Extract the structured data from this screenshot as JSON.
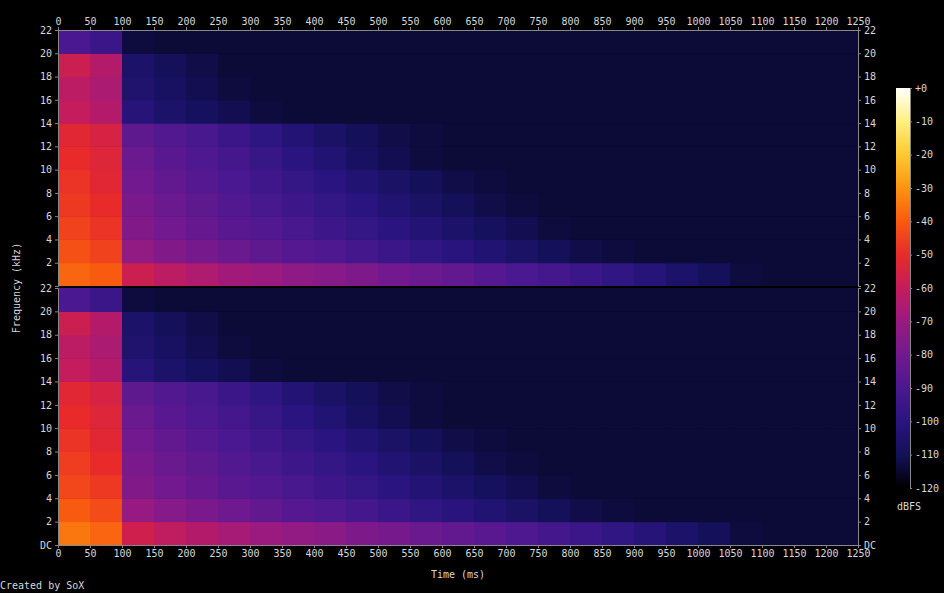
{
  "chart_data": [
    {
      "type": "heatmap",
      "x_bins": [
        0,
        50,
        100,
        150,
        200,
        250,
        300,
        350,
        400,
        450,
        500,
        550,
        600,
        650,
        700,
        750,
        800,
        850,
        900,
        950,
        1000,
        1050,
        1100,
        1150,
        1200,
        1250
      ],
      "y_bins": [
        0,
        2,
        4,
        6,
        8,
        10,
        12,
        14,
        16,
        18,
        20,
        22
      ],
      "xlim": [
        0,
        1250
      ],
      "ylim": [
        0,
        22
      ],
      "xticks": [
        0,
        50,
        100,
        150,
        200,
        250,
        300,
        350,
        400,
        450,
        500,
        550,
        600,
        650,
        700,
        750,
        800,
        850,
        900,
        950,
        1000,
        1050,
        1100,
        1150,
        1200,
        1250
      ],
      "yticks": [
        2,
        4,
        6,
        8,
        10,
        12,
        14,
        16,
        18,
        20,
        22
      ],
      "cells": [
        [
          -38,
          -40,
          -58,
          -62,
          -65,
          -68,
          -70,
          -73,
          -75,
          -77,
          -80,
          -82,
          -84,
          -87,
          -90,
          -92,
          -95,
          -98,
          -102,
          -106,
          -110,
          -113,
          -114,
          -114,
          -114
        ],
        [
          -42,
          -45,
          -72,
          -76,
          -79,
          -82,
          -85,
          -87,
          -89,
          -92,
          -95,
          -98,
          -101,
          -104,
          -107,
          -110,
          -112,
          -113,
          -114,
          -114,
          -114,
          -114,
          -114,
          -114,
          -114
        ],
        [
          -45,
          -48,
          -76,
          -80,
          -83,
          -86,
          -88,
          -91,
          -94,
          -97,
          -100,
          -103,
          -106,
          -109,
          -111,
          -113,
          -114,
          -114,
          -114,
          -114,
          -114,
          -114,
          -114,
          -114,
          -114
        ],
        [
          -47,
          -50,
          -78,
          -82,
          -85,
          -88,
          -91,
          -94,
          -97,
          -100,
          -104,
          -107,
          -110,
          -112,
          -113,
          -114,
          -114,
          -114,
          -114,
          -114,
          -114,
          -114,
          -114,
          -114,
          -114
        ],
        [
          -48,
          -52,
          -80,
          -84,
          -87,
          -90,
          -93,
          -97,
          -100,
          -104,
          -107,
          -110,
          -112,
          -113,
          -114,
          -114,
          -114,
          -114,
          -114,
          -114,
          -114,
          -114,
          -114,
          -114,
          -114
        ],
        [
          -50,
          -53,
          -82,
          -86,
          -89,
          -92,
          -96,
          -100,
          -104,
          -108,
          -111,
          -113,
          -114,
          -114,
          -114,
          -114,
          -114,
          -114,
          -114,
          -114,
          -114,
          -114,
          -114,
          -114,
          -114
        ],
        [
          -52,
          -55,
          -85,
          -88,
          -91,
          -95,
          -99,
          -103,
          -107,
          -110,
          -112,
          -113,
          -114,
          -114,
          -114,
          -114,
          -114,
          -114,
          -114,
          -114,
          -114,
          -114,
          -114,
          -114,
          -114
        ],
        [
          -60,
          -64,
          -102,
          -106,
          -109,
          -111,
          -113,
          -114,
          -114,
          -114,
          -114,
          -114,
          -114,
          -114,
          -114,
          -114,
          -114,
          -114,
          -114,
          -114,
          -114,
          -114,
          -114,
          -114,
          -114
        ],
        [
          -62,
          -66,
          -105,
          -108,
          -111,
          -113,
          -114,
          -114,
          -114,
          -114,
          -114,
          -114,
          -114,
          -114,
          -114,
          -114,
          -114,
          -114,
          -114,
          -114,
          -114,
          -114,
          -114,
          -114,
          -114
        ],
        [
          -58,
          -64,
          -106,
          -110,
          -112,
          -114,
          -114,
          -114,
          -114,
          -114,
          -114,
          -114,
          -114,
          -114,
          -114,
          -114,
          -114,
          -114,
          -114,
          -114,
          -114,
          -114,
          -114,
          -114,
          -114
        ],
        [
          -90,
          -95,
          -113,
          -114,
          -114,
          -114,
          -114,
          -114,
          -114,
          -114,
          -114,
          -114,
          -114,
          -114,
          -114,
          -114,
          -114,
          -114,
          -114,
          -114,
          -114,
          -114,
          -114,
          -114,
          -114
        ]
      ]
    },
    {
      "type": "heatmap",
      "x_label": "Time (ms)",
      "y_label": "Frequency (kHz)",
      "x_bins": [
        0,
        50,
        100,
        150,
        200,
        250,
        300,
        350,
        400,
        450,
        500,
        550,
        600,
        650,
        700,
        750,
        800,
        850,
        900,
        950,
        1000,
        1050,
        1100,
        1150,
        1200,
        1250
      ],
      "y_bins": [
        0,
        2,
        4,
        6,
        8,
        10,
        12,
        14,
        16,
        18,
        20,
        22
      ],
      "xlim": [
        0,
        1250
      ],
      "ylim": [
        0,
        22
      ],
      "xticks": [
        0,
        50,
        100,
        150,
        200,
        250,
        300,
        350,
        400,
        450,
        500,
        550,
        600,
        650,
        700,
        750,
        800,
        850,
        900,
        950,
        1000,
        1050,
        1100,
        1150,
        1200,
        1250
      ],
      "yticks": [
        {
          "value": 0,
          "label": "DC"
        },
        2,
        4,
        6,
        8,
        10,
        12,
        14,
        16,
        18,
        20,
        22
      ],
      "cells": [
        [
          -35,
          -38,
          -57,
          -61,
          -64,
          -67,
          -70,
          -72,
          -74,
          -77,
          -79,
          -82,
          -84,
          -86,
          -89,
          -92,
          -95,
          -98,
          -102,
          -106,
          -110,
          -113,
          -114,
          -114,
          -114
        ],
        [
          -40,
          -43,
          -71,
          -75,
          -78,
          -81,
          -84,
          -87,
          -89,
          -92,
          -95,
          -98,
          -101,
          -104,
          -107,
          -110,
          -112,
          -113,
          -114,
          -114,
          -114,
          -114,
          -114,
          -114,
          -114
        ],
        [
          -44,
          -47,
          -76,
          -80,
          -83,
          -86,
          -88,
          -91,
          -94,
          -97,
          -100,
          -103,
          -106,
          -109,
          -111,
          -113,
          -114,
          -114,
          -114,
          -114,
          -114,
          -114,
          -114,
          -114,
          -114
        ],
        [
          -46,
          -50,
          -78,
          -82,
          -85,
          -88,
          -91,
          -94,
          -97,
          -100,
          -104,
          -107,
          -110,
          -112,
          -113,
          -114,
          -114,
          -114,
          -114,
          -114,
          -114,
          -114,
          -114,
          -114,
          -114
        ],
        [
          -48,
          -52,
          -80,
          -84,
          -87,
          -90,
          -93,
          -97,
          -100,
          -104,
          -107,
          -110,
          -112,
          -113,
          -114,
          -114,
          -114,
          -114,
          -114,
          -114,
          -114,
          -114,
          -114,
          -114,
          -114
        ],
        [
          -50,
          -53,
          -82,
          -86,
          -89,
          -92,
          -96,
          -100,
          -104,
          -108,
          -111,
          -113,
          -114,
          -114,
          -114,
          -114,
          -114,
          -114,
          -114,
          -114,
          -114,
          -114,
          -114,
          -114,
          -114
        ],
        [
          -52,
          -55,
          -85,
          -88,
          -91,
          -95,
          -99,
          -103,
          -107,
          -110,
          -112,
          -113,
          -114,
          -114,
          -114,
          -114,
          -114,
          -114,
          -114,
          -114,
          -114,
          -114,
          -114,
          -114,
          -114
        ],
        [
          -60,
          -64,
          -102,
          -106,
          -109,
          -111,
          -113,
          -114,
          -114,
          -114,
          -114,
          -114,
          -114,
          -114,
          -114,
          -114,
          -114,
          -114,
          -114,
          -114,
          -114,
          -114,
          -114,
          -114,
          -114
        ],
        [
          -62,
          -66,
          -105,
          -108,
          -111,
          -113,
          -114,
          -114,
          -114,
          -114,
          -114,
          -114,
          -114,
          -114,
          -114,
          -114,
          -114,
          -114,
          -114,
          -114,
          -114,
          -114,
          -114,
          -114,
          -114
        ],
        [
          -58,
          -64,
          -106,
          -110,
          -112,
          -114,
          -114,
          -114,
          -114,
          -114,
          -114,
          -114,
          -114,
          -114,
          -114,
          -114,
          -114,
          -114,
          -114,
          -114,
          -114,
          -114,
          -114,
          -114,
          -114
        ],
        [
          -90,
          -95,
          -113,
          -114,
          -114,
          -114,
          -114,
          -114,
          -114,
          -114,
          -114,
          -114,
          -114,
          -114,
          -114,
          -114,
          -114,
          -114,
          -114,
          -114,
          -114,
          -114,
          -114,
          -114,
          -114
        ]
      ],
      "colorbar": {
        "range": [
          -120,
          0
        ],
        "ticks": [
          {
            "value": 0,
            "label": "+0"
          },
          -10,
          -20,
          -30,
          -40,
          -50,
          -60,
          -70,
          -80,
          -90,
          -100,
          -110,
          -120
        ],
        "label": "dBFS"
      }
    }
  ],
  "credit": "Created by SoX"
}
